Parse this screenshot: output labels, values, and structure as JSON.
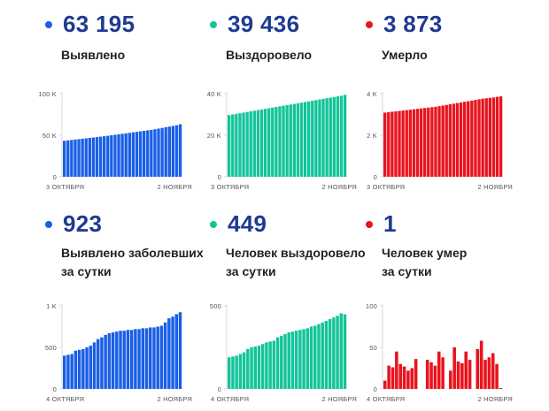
{
  "panels": [
    {
      "value": "63 195",
      "label_lines": [
        "Выявлено"
      ],
      "color": "#1a5fe6",
      "chart_data": {
        "type": "bar",
        "ylim": [
          0,
          100000
        ],
        "yticks": [
          {
            "v": 0,
            "t": "0"
          },
          {
            "v": 50000,
            "t": "50 K"
          },
          {
            "v": 100000,
            "t": "100 K"
          }
        ],
        "xlabels": [
          "3 ОКТЯБРЯ",
          "2 НОЯБРЯ"
        ],
        "values": [
          43300,
          43800,
          44300,
          44800,
          45300,
          45800,
          46300,
          46800,
          47300,
          47800,
          48300,
          48800,
          49300,
          49900,
          50500,
          51100,
          51700,
          52300,
          52900,
          53500,
          54100,
          54700,
          55300,
          55900,
          56500,
          57200,
          58000,
          58800,
          59600,
          60400,
          61200,
          62000,
          63195
        ]
      }
    },
    {
      "value": "39 436",
      "label_lines": [
        "Выздоровело"
      ],
      "color": "#13c49a",
      "chart_data": {
        "type": "bar",
        "ylim": [
          0,
          40000
        ],
        "yticks": [
          {
            "v": 0,
            "t": "0"
          },
          {
            "v": 20000,
            "t": "20 K"
          },
          {
            "v": 40000,
            "t": "40 K"
          }
        ],
        "xlabels": [
          "3 ОКТЯБРЯ",
          "2 НОЯБРЯ"
        ],
        "values": [
          29700,
          30000,
          30300,
          30600,
          30900,
          31200,
          31500,
          31800,
          32100,
          32400,
          32700,
          33000,
          33300,
          33600,
          33900,
          34200,
          34500,
          34800,
          35100,
          35400,
          35700,
          36000,
          36300,
          36600,
          36900,
          37200,
          37500,
          37800,
          38100,
          38400,
          38700,
          39000,
          39436
        ]
      }
    },
    {
      "value": "3 873",
      "label_lines": [
        "Умерло"
      ],
      "color": "#e8141e",
      "chart_data": {
        "type": "bar",
        "ylim": [
          0,
          4000
        ],
        "yticks": [
          {
            "v": 0,
            "t": "0"
          },
          {
            "v": 2000,
            "t": "2 K"
          },
          {
            "v": 4000,
            "t": "4 K"
          }
        ],
        "xlabels": [
          "3 ОКТЯБРЯ",
          "2 НОЯБРЯ"
        ],
        "values": [
          3090,
          3110,
          3130,
          3150,
          3170,
          3190,
          3210,
          3230,
          3250,
          3270,
          3290,
          3310,
          3330,
          3350,
          3370,
          3400,
          3430,
          3460,
          3490,
          3520,
          3550,
          3580,
          3610,
          3640,
          3670,
          3700,
          3730,
          3760,
          3780,
          3800,
          3820,
          3850,
          3873
        ]
      }
    },
    {
      "value": "923",
      "label_lines": [
        "Выявлено заболевших",
        "за сутки"
      ],
      "color": "#1a5fe6",
      "chart_data": {
        "type": "bar",
        "ylim": [
          0,
          1000
        ],
        "yticks": [
          {
            "v": 0,
            "t": "0"
          },
          {
            "v": 500,
            "t": "500"
          },
          {
            "v": 1000,
            "t": "1 K"
          }
        ],
        "xlabels": [
          "4 ОКТЯБРЯ",
          "2 НОЯБРЯ"
        ],
        "values": [
          400,
          410,
          420,
          460,
          470,
          480,
          500,
          520,
          560,
          600,
          620,
          650,
          670,
          680,
          690,
          700,
          700,
          710,
          710,
          720,
          720,
          730,
          730,
          740,
          740,
          750,
          760,
          800,
          850,
          870,
          900,
          923
        ]
      }
    },
    {
      "value": "449",
      "label_lines": [
        "Человек выздоровело",
        "за сутки"
      ],
      "color": "#13c49a",
      "chart_data": {
        "type": "bar",
        "ylim": [
          0,
          500
        ],
        "yticks": [
          {
            "v": 0,
            "t": "0"
          },
          {
            "v": 500,
            "t": "500"
          }
        ],
        "xlabels": [
          "4 ОКТЯБРЯ",
          "2 НОЯБРЯ"
        ],
        "values": [
          190,
          195,
          200,
          210,
          220,
          240,
          250,
          255,
          260,
          270,
          280,
          285,
          290,
          310,
          320,
          330,
          340,
          345,
          350,
          355,
          360,
          365,
          375,
          380,
          390,
          400,
          410,
          420,
          430,
          440,
          455,
          449
        ]
      }
    },
    {
      "value": "1",
      "label_lines": [
        "Человек умер",
        "за сутки"
      ],
      "color": "#e8141e",
      "chart_data": {
        "type": "bar",
        "ylim": [
          0,
          100
        ],
        "yticks": [
          {
            "v": 0,
            "t": "0"
          },
          {
            "v": 50,
            "t": "50"
          },
          {
            "v": 100,
            "t": "100"
          }
        ],
        "xlabels": [
          "4 ОКТЯБРЯ",
          "2 НОЯБРЯ"
        ],
        "values": [
          10,
          28,
          26,
          45,
          30,
          27,
          22,
          25,
          36,
          0,
          0,
          35,
          32,
          28,
          45,
          38,
          0,
          22,
          50,
          33,
          31,
          45,
          35,
          0,
          48,
          58,
          35,
          38,
          43,
          30,
          1
        ]
      }
    }
  ]
}
